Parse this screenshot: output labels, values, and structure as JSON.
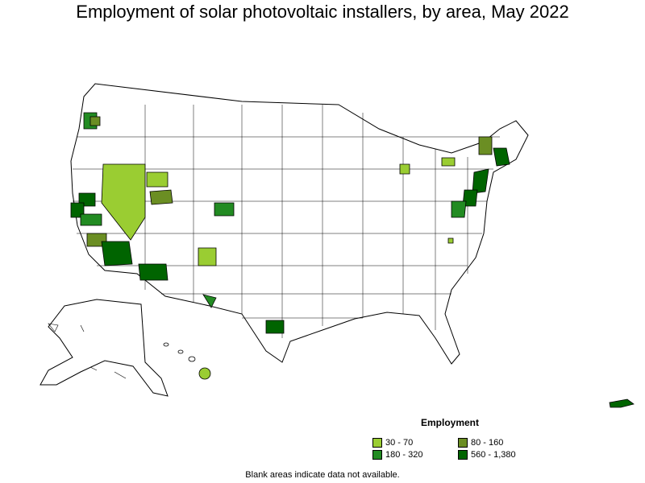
{
  "title": "Employment of solar photovoltaic installers, by area, May 2022",
  "legend": {
    "title": "Employment",
    "items": [
      {
        "label": "30 - 70",
        "color": "#9acd32"
      },
      {
        "label": "80 - 160",
        "color": "#6b8e23"
      },
      {
        "label": "180 - 320",
        "color": "#228b22"
      },
      {
        "label": "560 - 1,380",
        "color": "#006400"
      }
    ]
  },
  "footnote": "Blank areas indicate data not available.",
  "colors": {
    "outline": "#000000",
    "fill_none": "#ffffff"
  }
}
